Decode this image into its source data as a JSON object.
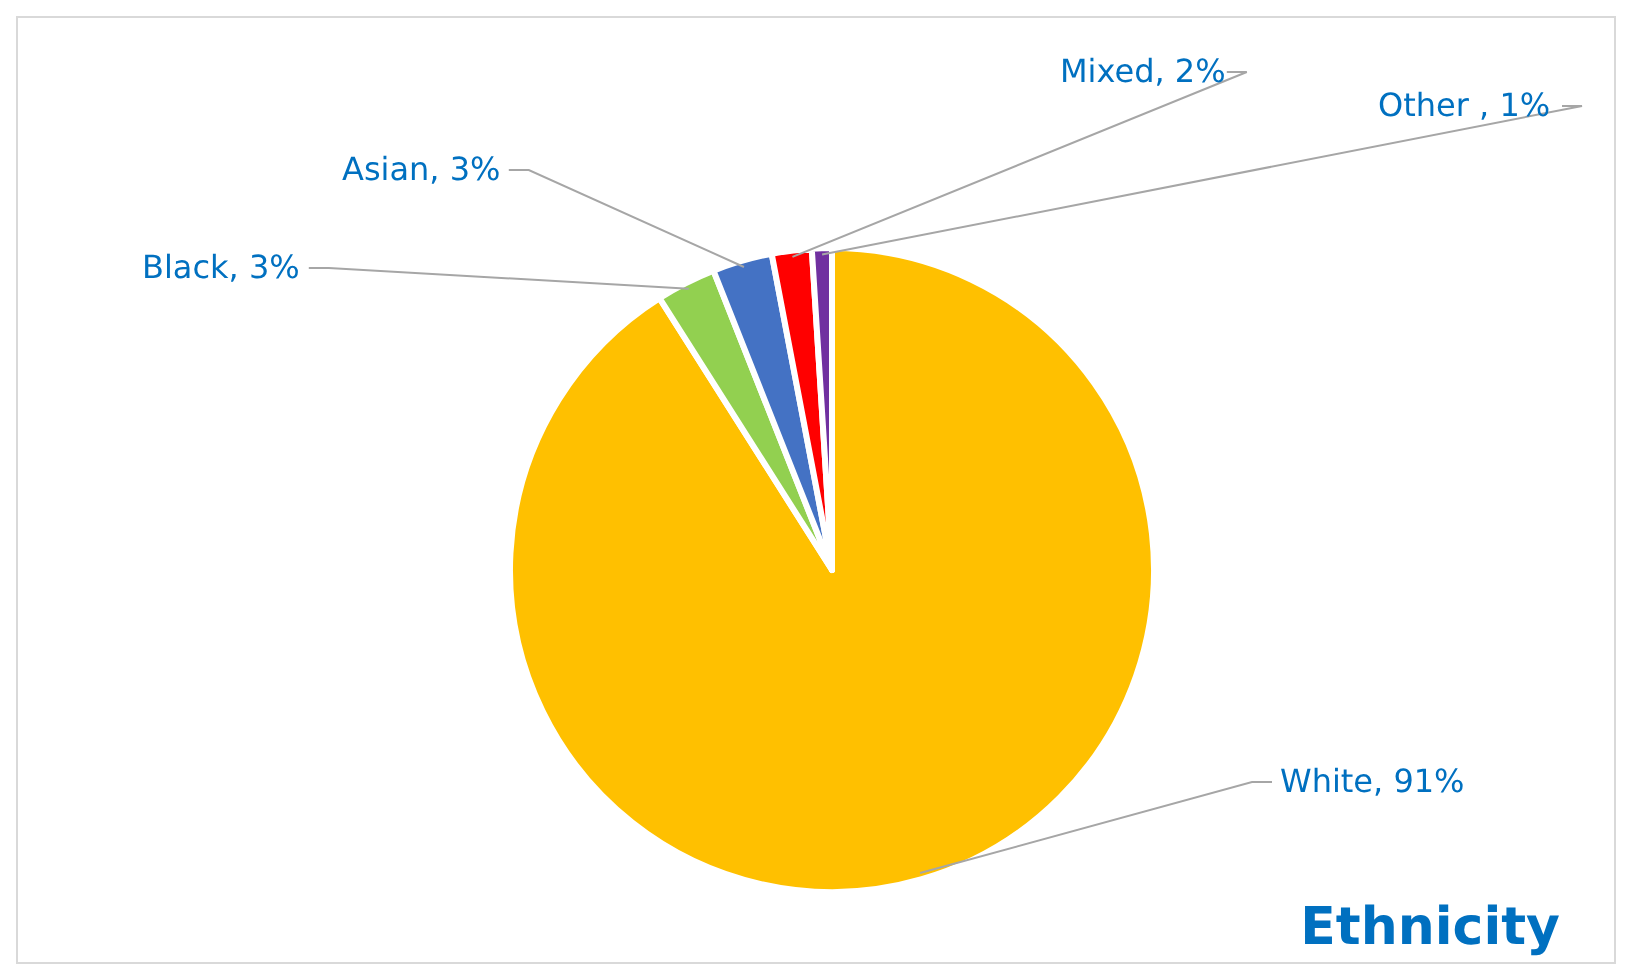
{
  "chart_data": {
    "type": "pie",
    "title": "Ethnicity",
    "categories": [
      "White",
      "Black",
      "Asian",
      "Mixed",
      "Other "
    ],
    "values": [
      91,
      3,
      3,
      2,
      1
    ],
    "colors": [
      "#ffc000",
      "#92d050",
      "#4472c4",
      "#ff0000",
      "#7030a0"
    ],
    "value_labels": [
      "91%",
      "3%",
      "3%",
      "2%",
      "1%"
    ]
  }
}
